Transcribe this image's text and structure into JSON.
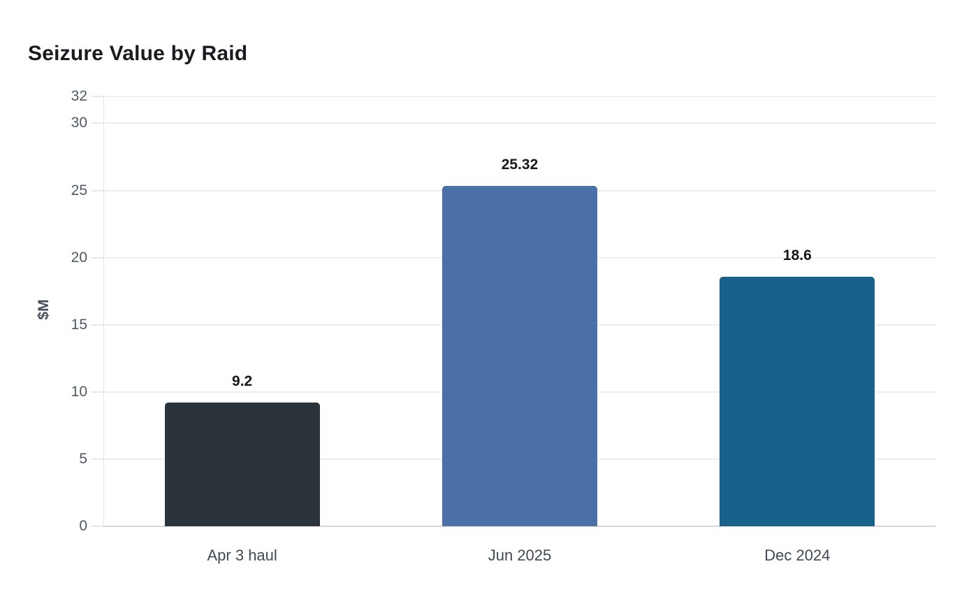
{
  "chart_data": {
    "type": "bar",
    "title": "Seizure Value by Raid",
    "xlabel": "",
    "ylabel": "$M",
    "categories": [
      "Apr 3 haul",
      "Jun 2025",
      "Dec 2024"
    ],
    "values": [
      9.2,
      25.32,
      18.6
    ],
    "value_labels": [
      "9.2",
      "25.32",
      "18.6"
    ],
    "bar_colors": [
      "#2b343a",
      "#4b70a8",
      "#17618b"
    ],
    "ylim": [
      0,
      32
    ],
    "yticks": [
      0,
      5,
      10,
      15,
      20,
      25,
      30,
      32
    ],
    "grid": "horizontal-only",
    "legend": "none",
    "background_color": "#ffffff",
    "value_label_color": "#15191d",
    "tick_label_color": "#4e5964",
    "gridline_color": "#eeeeee"
  }
}
